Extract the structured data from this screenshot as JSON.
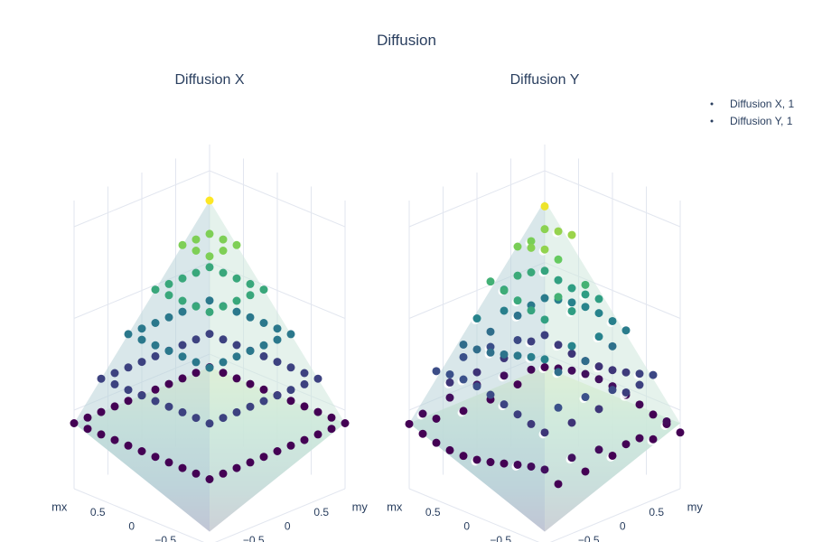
{
  "title": "Diffusion",
  "legend": {
    "placement": "top-right",
    "items": [
      "Diffusion X, 1",
      "Diffusion Y, 1"
    ]
  },
  "colors": {
    "marker_scale": [
      "#440154",
      "#3b528b",
      "#21918c",
      "#5ec962",
      "#fde725"
    ],
    "surface_scale": [
      "#c0a8c8",
      "#b8cfd6",
      "#dff5e0",
      "#eef8c8"
    ],
    "grid": "#e2e6ef",
    "text": "#2a3f5f"
  },
  "chart_data": [
    {
      "type": "scatter3d+surface",
      "title": "Diffusion X",
      "xlabel": "mx",
      "ylabel": "my",
      "x_ticks": [
        "−0.5",
        "0",
        "0.5"
      ],
      "y_ticks": [
        "−0.5",
        "0",
        "0.5"
      ],
      "xlim": [
        -1,
        1
      ],
      "ylim": [
        -1,
        1
      ],
      "surface": "z = 1 - max(|mx|, |my|)",
      "series": [
        {
          "name": "Diffusion X, 1",
          "marker": "points on a grid, colored by z"
        }
      ]
    },
    {
      "type": "scatter3d+surface",
      "title": "Diffusion Y",
      "xlabel": "mx",
      "ylabel": "my",
      "x_ticks": [
        "−0.5",
        "0",
        "0.5"
      ],
      "y_ticks": [
        "−0.5",
        "0",
        "0.5"
      ],
      "xlim": [
        -1,
        1
      ],
      "ylim": [
        -1,
        1
      ],
      "surface": "z = 1 - max(|mx|, |my|)",
      "series": [
        {
          "name": "Diffusion Y, 1",
          "marker": "points on a grid, colored by z"
        }
      ]
    }
  ]
}
